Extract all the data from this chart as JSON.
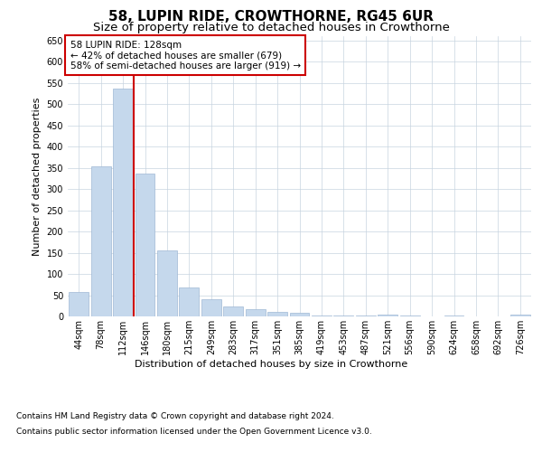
{
  "title1": "58, LUPIN RIDE, CROWTHORNE, RG45 6UR",
  "title2": "Size of property relative to detached houses in Crowthorne",
  "xlabel": "Distribution of detached houses by size in Crowthorne",
  "ylabel": "Number of detached properties",
  "footnote1": "Contains HM Land Registry data © Crown copyright and database right 2024.",
  "footnote2": "Contains public sector information licensed under the Open Government Licence v3.0.",
  "categories": [
    "44sqm",
    "78sqm",
    "112sqm",
    "146sqm",
    "180sqm",
    "215sqm",
    "249sqm",
    "283sqm",
    "317sqm",
    "351sqm",
    "385sqm",
    "419sqm",
    "453sqm",
    "487sqm",
    "521sqm",
    "556sqm",
    "590sqm",
    "624sqm",
    "658sqm",
    "692sqm",
    "726sqm"
  ],
  "values": [
    57,
    354,
    537,
    336,
    155,
    68,
    40,
    23,
    18,
    10,
    9,
    2,
    2,
    2,
    4,
    2,
    0,
    2,
    0,
    0,
    4
  ],
  "bar_color": "#c5d8ec",
  "bar_edge_color": "#a0b8d4",
  "red_line_x": 2.5,
  "annotation_text": "58 LUPIN RIDE: 128sqm\n← 42% of detached houses are smaller (679)\n58% of semi-detached houses are larger (919) →",
  "annotation_box_color": "#ffffff",
  "annotation_box_edge": "#cc0000",
  "ylim": [
    0,
    660
  ],
  "yticks": [
    0,
    50,
    100,
    150,
    200,
    250,
    300,
    350,
    400,
    450,
    500,
    550,
    600,
    650
  ],
  "bg_color": "#ffffff",
  "grid_color": "#c8d4e0",
  "title1_fontsize": 11,
  "title2_fontsize": 9.5,
  "annot_fontsize": 7.5,
  "footnote_fontsize": 6.5,
  "axis_label_fontsize": 8,
  "tick_fontsize": 7
}
